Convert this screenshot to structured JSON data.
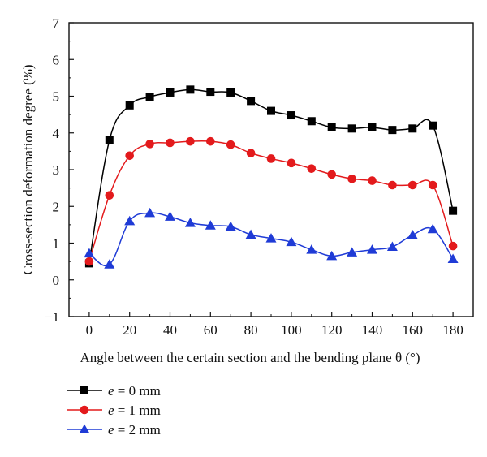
{
  "chart_data": {
    "type": "line",
    "xlabel": "Angle between the certain section and the bending plane θ (°)",
    "ylabel": "Cross-section deformation degree (%)",
    "xlim": [
      -10,
      190
    ],
    "ylim": [
      -1,
      7
    ],
    "x_ticks": [
      0,
      20,
      40,
      60,
      80,
      100,
      120,
      140,
      160,
      180
    ],
    "y_ticks": [
      -1,
      0,
      1,
      2,
      3,
      4,
      5,
      6,
      7
    ],
    "grid": false,
    "legend_position": "bottom-left below plot",
    "series": [
      {
        "name": "e = 0 mm",
        "marker": "square",
        "color": "#000000",
        "x": [
          0,
          10,
          20,
          30,
          40,
          50,
          60,
          70,
          80,
          90,
          100,
          110,
          120,
          130,
          140,
          150,
          160,
          170,
          180
        ],
        "y": [
          0.45,
          3.8,
          4.75,
          4.98,
          5.1,
          5.18,
          5.12,
          5.1,
          4.87,
          4.6,
          4.48,
          4.32,
          4.15,
          4.12,
          4.15,
          4.08,
          4.12,
          4.2,
          1.88
        ]
      },
      {
        "name": "e = 1 mm",
        "marker": "circle",
        "color": "#e31a1c",
        "x": [
          0,
          10,
          20,
          30,
          40,
          50,
          60,
          70,
          80,
          90,
          100,
          110,
          120,
          130,
          140,
          150,
          160,
          170,
          180
        ],
        "y": [
          0.5,
          2.3,
          3.38,
          3.7,
          3.73,
          3.77,
          3.77,
          3.68,
          3.45,
          3.3,
          3.18,
          3.03,
          2.87,
          2.75,
          2.7,
          2.58,
          2.58,
          2.58,
          0.92
        ]
      },
      {
        "name": "e = 2 mm",
        "marker": "triangle",
        "color": "#1f3bd6",
        "x": [
          0,
          10,
          20,
          30,
          40,
          50,
          60,
          70,
          80,
          90,
          100,
          110,
          120,
          130,
          140,
          150,
          160,
          170,
          180
        ],
        "y": [
          0.72,
          0.42,
          1.6,
          1.82,
          1.72,
          1.55,
          1.48,
          1.45,
          1.23,
          1.13,
          1.03,
          0.82,
          0.65,
          0.75,
          0.82,
          0.9,
          1.22,
          1.38,
          0.57
        ]
      }
    ],
    "legend": [
      {
        "prefix": "e",
        "rest": " = 0 mm",
        "marker": "square",
        "color": "#000000"
      },
      {
        "prefix": "e",
        "rest": " = 1 mm",
        "marker": "circle",
        "color": "#e31a1c"
      },
      {
        "prefix": "e",
        "rest": " = 2 mm",
        "marker": "triangle",
        "color": "#1f3bd6"
      }
    ]
  }
}
